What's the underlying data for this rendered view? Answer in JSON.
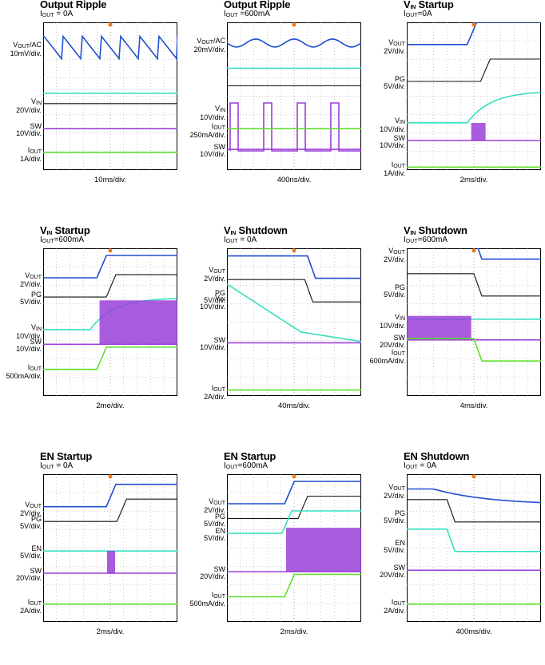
{
  "colors": {
    "vout": "#1f4fd0",
    "pg": "#111111",
    "vin": "#36e0c0",
    "sw": "#9a3fd8",
    "iout": "#5ee02a",
    "trigger": "#f07a18",
    "grid": "#9a9a9a"
  },
  "chart_data": [
    {
      "type": "line",
      "title": "Output Ripple",
      "subtitle": "IOUT = 0A",
      "xlabel": "10ms/div.",
      "series": [
        {
          "name": "VOUT/AC",
          "label_line2": "10mV/div.",
          "key": "vout",
          "level": 0.17,
          "shape": "sawtooth"
        },
        {
          "name": "",
          "key": "vin",
          "level": 0.48,
          "shape": "flat"
        },
        {
          "name": "VIN",
          "label_line2": "20V/div.",
          "key": "pg",
          "level": 0.55,
          "shape": "flat"
        },
        {
          "name": "SW",
          "label_line2": "10V/div.",
          "key": "sw",
          "level": 0.72,
          "shape": "flat"
        },
        {
          "name": "IOUT",
          "label_line2": "1A/div.",
          "key": "iout",
          "level": 0.88,
          "shape": "flat"
        }
      ]
    },
    {
      "type": "line",
      "title": "Output Ripple",
      "subtitle": "IOUT =600mA",
      "xlabel": "400ns/div.",
      "series": [
        {
          "name": "VOUT/AC",
          "label_line2": "20mV/div.",
          "key": "vout",
          "level": 0.14,
          "shape": "ripple"
        },
        {
          "name": "",
          "key": "vin",
          "level": 0.31,
          "shape": "flat"
        },
        {
          "name": "",
          "key": "pg",
          "level": 0.43,
          "shape": "flat"
        },
        {
          "name": "VIN",
          "label_line2": "10V/div.",
          "key": "sw",
          "level": 0.6,
          "shape": "pulses"
        },
        {
          "name": "IOUT",
          "label_line2": "250mA/div.",
          "key": "iout",
          "level": 0.72,
          "shape": "flat"
        },
        {
          "name": "SW",
          "label_line2": "10V/div.",
          "key": "sw",
          "level": 0.86,
          "shape": "flat"
        }
      ]
    },
    {
      "type": "line",
      "title": "VIN Startup",
      "subtitle": "IOUT=0A",
      "xlabel": "2ms/div.",
      "series": [
        {
          "name": "VOUT",
          "label_line2": "2V/div.",
          "key": "vout",
          "level": 0.15,
          "shape": "step_up",
          "t": 0.45
        },
        {
          "name": "PG",
          "label_line2": "5V/div.",
          "key": "pg",
          "level": 0.4,
          "shape": "step_up",
          "t": 0.55
        },
        {
          "name": "VIN",
          "label_line2": "10V/div.",
          "key": "vin",
          "level": 0.68,
          "shape": "ramp_up",
          "t": 0.45
        },
        {
          "name": "SW",
          "label_line2": "10V/div.",
          "key": "sw",
          "level": 0.8,
          "shape": "burst",
          "t": 0.48
        },
        {
          "name": "IOUT",
          "label_line2": "1A/div.",
          "key": "iout",
          "level": 0.98,
          "shape": "flat"
        }
      ]
    },
    {
      "type": "line",
      "title": "VIN Startup",
      "subtitle": "IOUT=600mA",
      "xlabel": "2me/div.",
      "series": [
        {
          "name": "VOUT",
          "label_line2": "2V/div.",
          "key": "vout",
          "level": 0.2,
          "shape": "step_up",
          "t": 0.4
        },
        {
          "name": "PG",
          "label_line2": "5V/div.",
          "key": "pg",
          "level": 0.33,
          "shape": "step_up",
          "t": 0.47
        },
        {
          "name": "VIN",
          "label_line2": "10V/div.",
          "key": "vin",
          "level": 0.55,
          "shape": "ramp_up",
          "t": 0.35
        },
        {
          "name": "SW",
          "label_line2": "10V/div.",
          "key": "sw",
          "level": 0.65,
          "shape": "burst_full",
          "t": 0.42
        },
        {
          "name": "IOUT",
          "label_line2": "500mA/div.",
          "key": "iout",
          "level": 0.82,
          "shape": "step_up",
          "t": 0.4
        }
      ]
    },
    {
      "type": "line",
      "title": "VIN Shutdown",
      "subtitle": "IOUT = 0A",
      "xlabel": "40ms/div.",
      "series": [
        {
          "name": "VOUT",
          "label_line2": "2V/div.",
          "key": "vout",
          "level": 0.16,
          "shape": "step_down",
          "t": 0.6
        },
        {
          "name": "PG",
          "label_line2": "5V/div.",
          "key": "pg",
          "level": 0.32,
          "shape": "step_down",
          "t": 0.58
        },
        {
          "name": "VIN",
          "label_line2": "10V/div.",
          "key": "vin",
          "level": 0.35,
          "shape": "ramp_down",
          "t": 0.05
        },
        {
          "name": "SW",
          "label_line2": "10V/div.",
          "key": "sw",
          "level": 0.64,
          "shape": "flat"
        },
        {
          "name": "IOUT",
          "label_line2": "2A/div.",
          "key": "iout",
          "level": 0.96,
          "shape": "flat"
        }
      ]
    },
    {
      "type": "line",
      "title": "VIN Shutdown",
      "subtitle": "IOUT=600mA",
      "xlabel": "4ms/div.",
      "series": [
        {
          "name": "VOUT",
          "label_line2": "2V/div.",
          "key": "vout",
          "level": 0.03,
          "shape": "step_down",
          "t": 0.5
        },
        {
          "name": "PG",
          "label_line2": "5V/div.",
          "key": "pg",
          "level": 0.28,
          "shape": "step_down",
          "t": 0.5
        },
        {
          "name": "VIN",
          "label_line2": "10V/div.",
          "key": "vin",
          "level": 0.48,
          "shape": "flat"
        },
        {
          "name": "SW",
          "label_line2": "20V/div.",
          "key": "sw",
          "level": 0.62,
          "shape": "burst_stop",
          "t": 0.48
        },
        {
          "name": "IOUT",
          "label_line2": "600mA/div.",
          "key": "iout",
          "level": 0.72,
          "shape": "step_down",
          "t": 0.5
        }
      ]
    },
    {
      "type": "line",
      "title": "EN Startup",
      "subtitle": "IOUT = 0A",
      "xlabel": "2ms/div.",
      "series": [
        {
          "name": "VOUT",
          "label_line2": "2V/div.",
          "key": "vout",
          "level": 0.22,
          "shape": "step_up",
          "t": 0.47
        },
        {
          "name": "PG",
          "label_line2": "5V/div.",
          "key": "pg",
          "level": 0.32,
          "shape": "step_up",
          "t": 0.55
        },
        {
          "name": "EN",
          "label_line2": "5V/div.",
          "key": "vin",
          "level": 0.52,
          "shape": "flat"
        },
        {
          "name": "SW",
          "label_line2": "20V/div.",
          "key": "sw",
          "level": 0.67,
          "shape": "burst_short",
          "t": 0.5
        },
        {
          "name": "IOUT",
          "label_line2": "2A/div.",
          "key": "iout",
          "level": 0.88,
          "shape": "flat"
        }
      ]
    },
    {
      "type": "line",
      "title": "EN Startup",
      "subtitle": "IOUT=600mA",
      "xlabel": "2ms/div.",
      "series": [
        {
          "name": "VOUT",
          "label_line2": "2V/div.",
          "key": "vout",
          "level": 0.2,
          "shape": "step_up",
          "t": 0.43
        },
        {
          "name": "PG",
          "label_line2": "5V/div.",
          "key": "pg",
          "level": 0.3,
          "shape": "step_up",
          "t": 0.53
        },
        {
          "name": "EN",
          "label_line2": "5V/div.",
          "key": "vin",
          "level": 0.4,
          "shape": "step_up",
          "t": 0.41
        },
        {
          "name": "SW",
          "label_line2": "20V/div.",
          "key": "sw",
          "level": 0.66,
          "shape": "burst_full",
          "t": 0.44
        },
        {
          "name": "IOUT",
          "label_line2": "500mA/div.",
          "key": "iout",
          "level": 0.83,
          "shape": "step_up",
          "t": 0.43
        }
      ]
    },
    {
      "type": "line",
      "title": "EN Shutdown",
      "subtitle": "IOUT = 0A",
      "xlabel": "400ms/div.",
      "series": [
        {
          "name": "VOUT",
          "label_line2": "2V/div.",
          "key": "vout",
          "level": 0.1,
          "shape": "decay",
          "t": 0.2
        },
        {
          "name": "PG",
          "label_line2": "5V/div.",
          "key": "pg",
          "level": 0.28,
          "shape": "step_down",
          "t": 0.3
        },
        {
          "name": "EN",
          "label_line2": "5V/div.",
          "key": "vin",
          "level": 0.48,
          "shape": "step_down",
          "t": 0.3
        },
        {
          "name": "SW",
          "label_line2": "20V/div.",
          "key": "sw",
          "level": 0.65,
          "shape": "flat"
        },
        {
          "name": "IOUT",
          "label_line2": "2A/div.",
          "key": "iout",
          "level": 0.88,
          "shape": "flat"
        }
      ]
    }
  ]
}
